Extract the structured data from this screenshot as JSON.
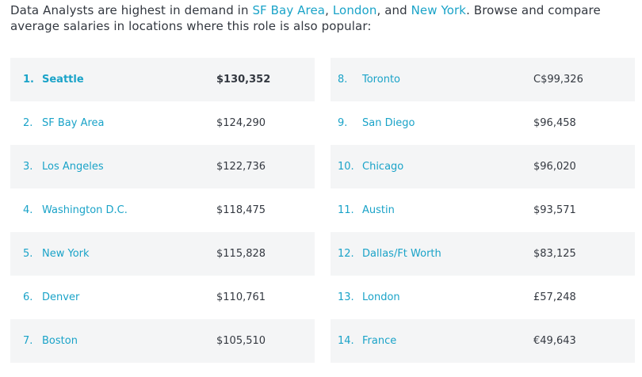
{
  "intro": {
    "prefix": "Data Analysts are highest in demand in ",
    "link1": "SF Bay Area",
    "sep1": ", ",
    "link2": "London",
    "sep2": ", and ",
    "link3": "New York",
    "suffix": ". Browse and compare average salaries in locations where this role is also popular:"
  },
  "colors": {
    "link": "#1aa3c8",
    "text": "#333840",
    "row_shade": "#f4f5f6"
  },
  "locations_left": [
    {
      "rank": "1.",
      "city": "Seattle",
      "salary": "$130,352"
    },
    {
      "rank": "2.",
      "city": "SF Bay Area",
      "salary": "$124,290"
    },
    {
      "rank": "3.",
      "city": "Los Angeles",
      "salary": "$122,736"
    },
    {
      "rank": "4.",
      "city": "Washington D.C.",
      "salary": "$118,475"
    },
    {
      "rank": "5.",
      "city": "New York",
      "salary": "$115,828"
    },
    {
      "rank": "6.",
      "city": "Denver",
      "salary": "$110,761"
    },
    {
      "rank": "7.",
      "city": "Boston",
      "salary": "$105,510"
    }
  ],
  "locations_right": [
    {
      "rank": "8.",
      "city": "Toronto",
      "salary": "C$99,326"
    },
    {
      "rank": "9.",
      "city": "San Diego",
      "salary": "$96,458"
    },
    {
      "rank": "10.",
      "city": "Chicago",
      "salary": "$96,020"
    },
    {
      "rank": "11.",
      "city": "Austin",
      "salary": "$93,571"
    },
    {
      "rank": "12.",
      "city": "Dallas/Ft Worth",
      "salary": "$83,125"
    },
    {
      "rank": "13.",
      "city": "London",
      "salary": "£57,248"
    },
    {
      "rank": "14.",
      "city": "France",
      "salary": "€49,643"
    }
  ]
}
